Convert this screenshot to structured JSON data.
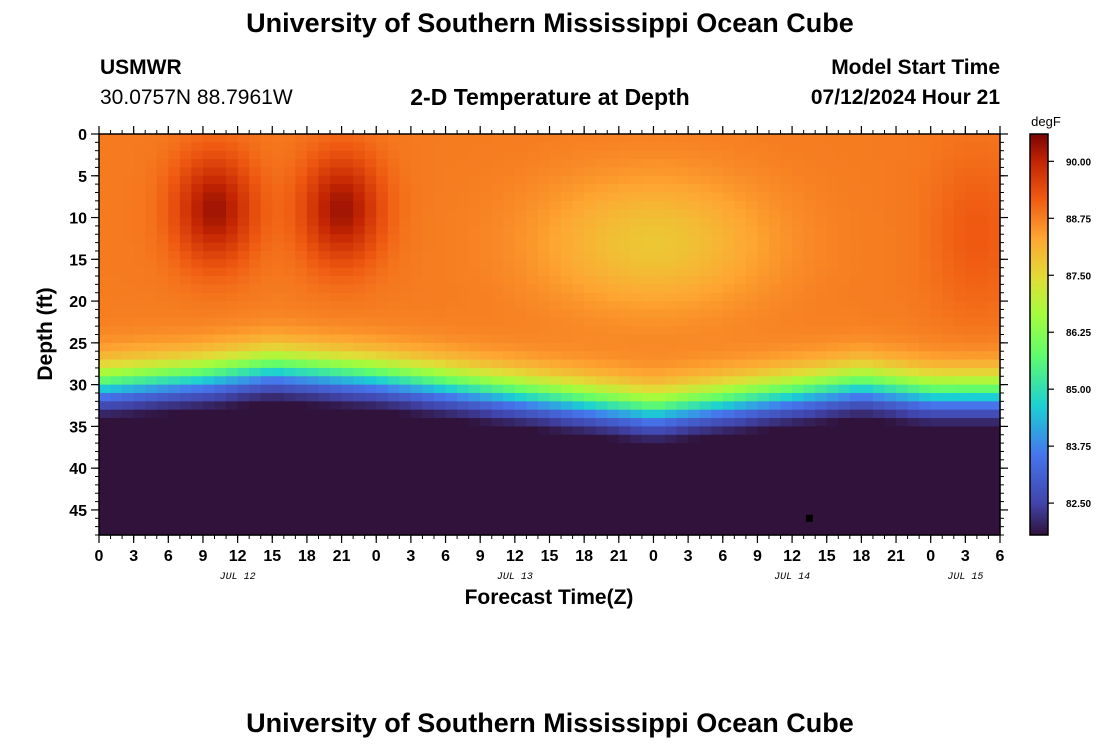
{
  "header": {
    "title": "University of Southern Mississippi Ocean Cube",
    "station": "USMWR",
    "coords": "30.0757N  88.7961W",
    "subtitle": "2-D Temperature at Depth",
    "model_start_label": "Model Start Time",
    "model_start_value": "07/12/2024 Hour 21"
  },
  "footer": {
    "title": "University of Southern Mississippi Ocean Cube"
  },
  "chart_data": {
    "type": "heatmap",
    "title": "2-D Temperature at Depth",
    "xlabel": "Forecast Time(Z)",
    "ylabel": "Depth (ft)",
    "x_tick_labels": [
      "0",
      "3",
      "6",
      "9",
      "12",
      "15",
      "18",
      "21",
      "0",
      "3",
      "6",
      "9",
      "12",
      "15",
      "18",
      "21",
      "0",
      "3",
      "6",
      "9",
      "12",
      "15",
      "18",
      "21",
      "0",
      "3",
      "6"
    ],
    "date_labels": [
      {
        "label": "JUL 12",
        "hour": 12
      },
      {
        "label": "JUL 13",
        "hour": 36
      },
      {
        "label": "JUL 14",
        "hour": 60
      },
      {
        "label": "JUL 15",
        "hour": 75
      }
    ],
    "xlim_hours": [
      0,
      78
    ],
    "ylim_ft": [
      0,
      48
    ],
    "y_ticks": [
      0,
      5,
      10,
      15,
      20,
      25,
      30,
      35,
      40,
      45
    ],
    "colorbar": {
      "unit": "degF",
      "ticks": [
        "90.00",
        "88.75",
        "87.50",
        "86.25",
        "85.00",
        "83.75",
        "82.50"
      ],
      "tick_values": [
        90.0,
        88.75,
        87.5,
        86.25,
        85.0,
        83.75,
        82.5
      ],
      "range": [
        81.8,
        90.6
      ]
    },
    "surface_temp_hot_cores": [
      {
        "hour": 10,
        "depth_ft": 9,
        "value": 90.5
      },
      {
        "hour": 21,
        "depth_ft": 9,
        "value": 90.5
      }
    ],
    "thermocline": [
      {
        "hour": 0,
        "depth_ft": 30
      },
      {
        "hour": 9,
        "depth_ft": 29
      },
      {
        "hour": 15,
        "depth_ft": 28
      },
      {
        "hour": 24,
        "depth_ft": 29
      },
      {
        "hour": 36,
        "depth_ft": 31
      },
      {
        "hour": 48,
        "depth_ft": 33
      },
      {
        "hour": 60,
        "depth_ft": 31
      },
      {
        "hour": 66,
        "depth_ft": 30
      },
      {
        "hour": 72,
        "depth_ft": 31
      },
      {
        "hour": 78,
        "depth_ft": 31
      }
    ],
    "marker": {
      "hour": 61.5,
      "depth_ft": 46
    }
  }
}
